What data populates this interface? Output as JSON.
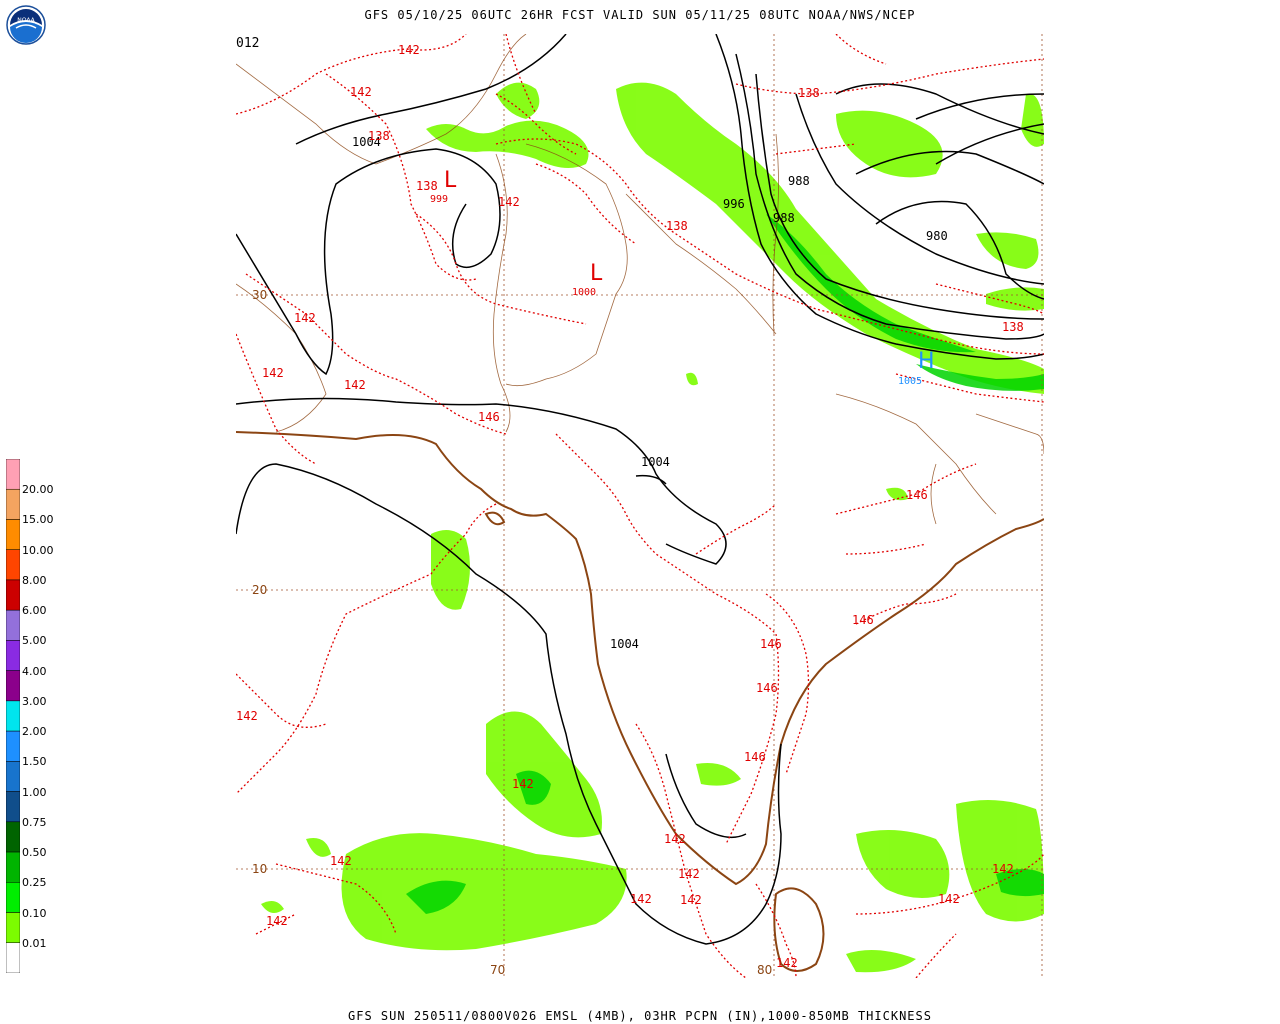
{
  "header": {
    "title": "GFS 05/10/25 06UTC 26HR FCST VALID SUN 05/11/25 08UTC NOAA/NWS/NCEP"
  },
  "footer": {
    "title": "GFS SUN 250511/0800V026 EMSL (4MB), 03HR PCPN (IN),1000-850MB THICKNESS"
  },
  "logo": {
    "icon": "noaa-logo-icon",
    "text": "NOAA"
  },
  "map_panel": {
    "corner_label": "012",
    "lat_labels": [
      "30",
      "20",
      "10"
    ],
    "lon_labels": [
      "70",
      "80"
    ],
    "pressure_labels": [
      "1004",
      "999",
      "1000",
      "996",
      "988",
      "988",
      "980",
      "1005",
      "1004",
      "1004"
    ],
    "thickness_labels": [
      "142",
      "142",
      "138",
      "138",
      "142",
      "138",
      "142",
      "142",
      "142",
      "146",
      "138",
      "138",
      "146",
      "146",
      "146",
      "146",
      "146",
      "142",
      "142",
      "142",
      "142",
      "142",
      "142",
      "142",
      "142",
      "142",
      "142",
      "142"
    ],
    "lows": [
      "L",
      "L"
    ],
    "highs": [
      "H"
    ]
  },
  "legend": {
    "labels": [
      "20.00",
      "15.00",
      "10.00",
      "8.00",
      "6.00",
      "5.00",
      "4.00",
      "3.00",
      "2.00",
      "1.50",
      "1.00",
      "0.75",
      "0.50",
      "0.25",
      "0.10",
      "0.01"
    ],
    "colors": [
      "#ffa0b4",
      "#f4a460",
      "#ff8c00",
      "#ff4500",
      "#cc0000",
      "#9370db",
      "#8a2be2",
      "#8b008b",
      "#00e5ee",
      "#1e90ff",
      "#1874cd",
      "#104e8b",
      "#006400",
      "#00b400",
      "#00ee00",
      "#7cfc00",
      "#ffffff"
    ]
  }
}
